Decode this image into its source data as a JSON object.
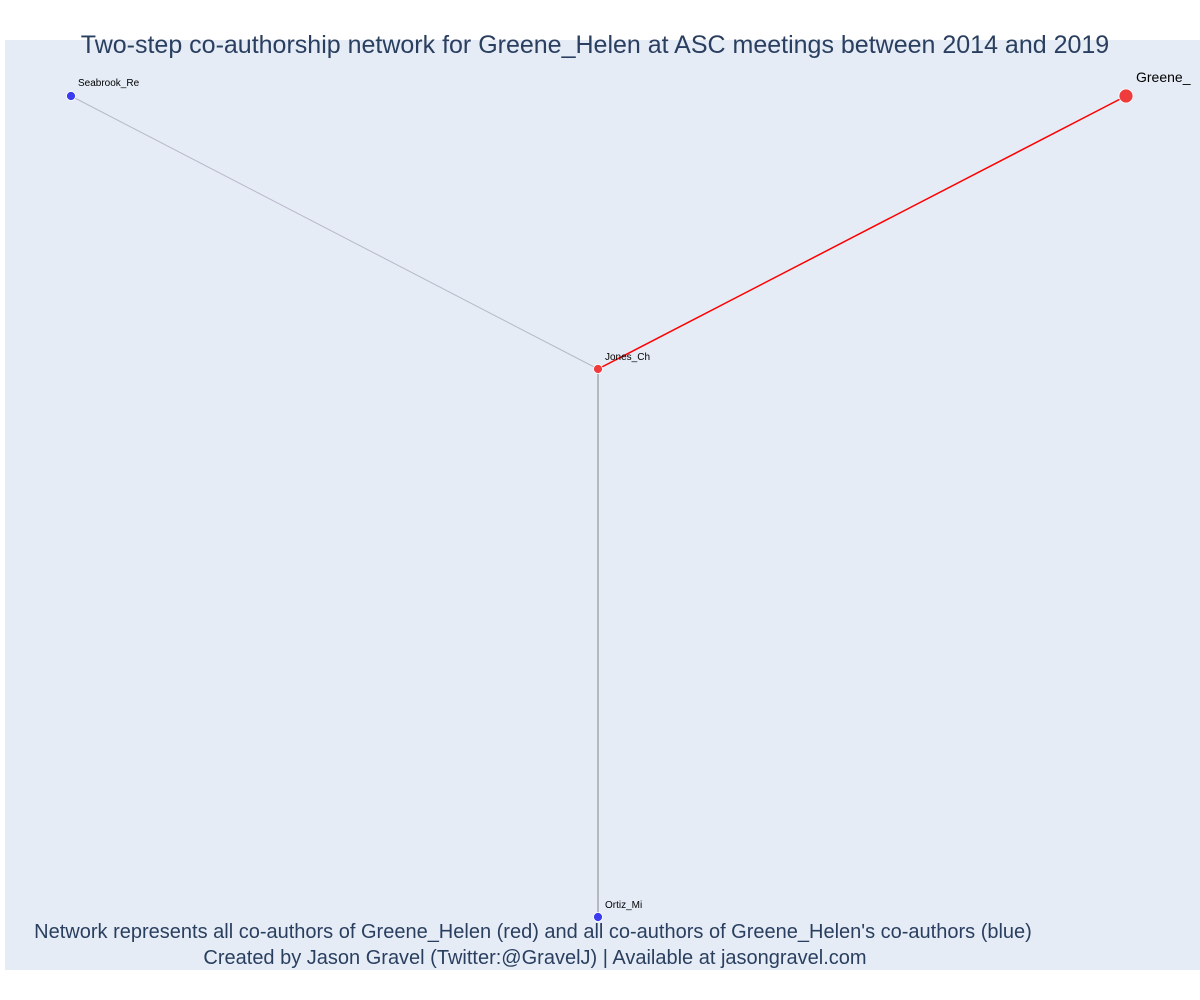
{
  "title": "Two-step co-authorship network for Greene_Helen at ASC meetings between 2014 and 2019",
  "caption": {
    "line1": "Network represents all co-authors of Greene_Helen (red) and all co-authors of Greene_Helen's co-authors (blue)",
    "line2": "Created by Jason Gravel (Twitter:@GravelJ) | Available at jasongravel.com"
  },
  "colors": {
    "background": "#e5ecf6",
    "first_step": "#ef3b3b",
    "second_step": "#3b3bef",
    "edge_focal": "#ff0000",
    "edge_other": "#b8b8c8",
    "edge_dark": "#888888",
    "text": "#2a3f5f"
  },
  "nodes": [
    {
      "id": "greene",
      "label": "Greene_",
      "group": "focal"
    },
    {
      "id": "jones",
      "label": "Jones_Ch",
      "group": "first"
    },
    {
      "id": "seabrook",
      "label": "Seabrook_Re",
      "group": "second"
    },
    {
      "id": "ortiz",
      "label": "Ortiz_Mi",
      "group": "second"
    }
  ],
  "edges": [
    {
      "source": "greene",
      "target": "jones",
      "type": "focal"
    },
    {
      "source": "jones",
      "target": "seabrook",
      "type": "other"
    },
    {
      "source": "jones",
      "target": "ortiz",
      "type": "dark"
    }
  ]
}
